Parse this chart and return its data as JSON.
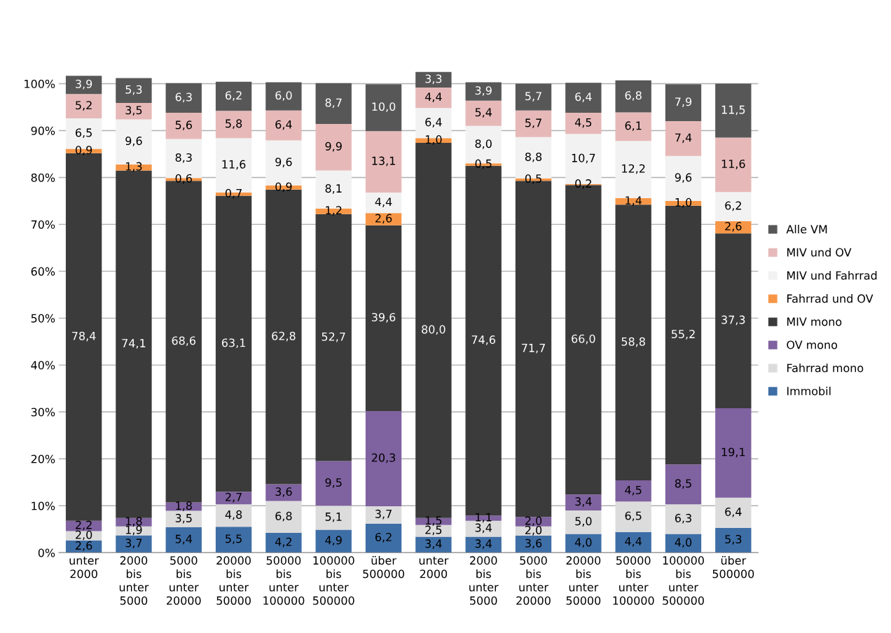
{
  "chart_data": {
    "type": "bar",
    "stacked": true,
    "categories": [
      "unter\n2000",
      "2000\nbis\nunter\n5000",
      "5000\nbis\nunter\n20000",
      "20000\nbis\nunter\n50000",
      "50000\nbis\nunter\n100000",
      "100000\nbis\nunter\n500000",
      "über\n500000",
      "unter\n2000",
      "2000\nbis\nunter\n5000",
      "5000\nbis\nunter\n20000",
      "20000\nbis\nunter\n50000",
      "50000\nbis\nunter\n100000",
      "100000\nbis\nunter\n500000",
      "über\n500000"
    ],
    "ylim": [
      0,
      103
    ],
    "yticks": [
      {
        "value": 0,
        "label": "0%"
      },
      {
        "value": 10,
        "label": "10%"
      },
      {
        "value": 20,
        "label": "20%"
      },
      {
        "value": 30,
        "label": "30%"
      },
      {
        "value": 40,
        "label": "40%"
      },
      {
        "value": 50,
        "label": "50%"
      },
      {
        "value": 60,
        "label": "60%"
      },
      {
        "value": 70,
        "label": "70%"
      },
      {
        "value": 80,
        "label": "80%"
      },
      {
        "value": 90,
        "label": "90%"
      },
      {
        "value": 100,
        "label": "100%"
      }
    ],
    "grid": "y",
    "legend": "right",
    "series": [
      {
        "name": "Immobil",
        "color": "#3e6ea6",
        "values": [
          2.6,
          3.7,
          5.4,
          5.5,
          4.2,
          4.9,
          6.2,
          3.4,
          3.4,
          3.6,
          4.0,
          4.4,
          4.0,
          5.3
        ],
        "value_labels": [
          "2,6",
          "3,7",
          "5,4",
          "5,5",
          "4,2",
          "4,9",
          "6,2",
          "3,4",
          "3,4",
          "3,6",
          "4,0",
          "4,4",
          "4,0",
          "5,3"
        ]
      },
      {
        "name": "Fahrrad mono",
        "color": "#dcdcdc",
        "values": [
          2.0,
          1.9,
          3.5,
          4.8,
          6.8,
          5.1,
          3.7,
          2.5,
          3.4,
          2.0,
          5.0,
          6.5,
          6.3,
          6.4
        ],
        "value_labels": [
          "2,0",
          "1,9",
          "3,5",
          "4,8",
          "6,8",
          "5,1",
          "3,7",
          "2,5",
          "3,4",
          "2,0",
          "5,0",
          "6,5",
          "6,3",
          "6,4"
        ]
      },
      {
        "name": "OV mono",
        "color": "#7f62a0",
        "values": [
          2.2,
          1.8,
          1.8,
          2.7,
          3.6,
          9.5,
          20.3,
          1.5,
          1.1,
          2.0,
          3.4,
          4.5,
          8.5,
          19.1
        ],
        "value_labels": [
          "2,2",
          "1,8",
          "1,8",
          "2,7",
          "3,6",
          "9,5",
          "20,3",
          "1,5",
          "1,1",
          "2,0",
          "3,4",
          "4,5",
          "8,5",
          "19,1"
        ]
      },
      {
        "name": "MIV mono",
        "color": "#3b3b3b",
        "values": [
          78.4,
          74.1,
          68.6,
          63.1,
          62.8,
          52.7,
          39.6,
          80.0,
          74.6,
          71.7,
          66.0,
          58.8,
          55.2,
          37.3
        ],
        "value_labels": [
          "78,4",
          "74,1",
          "68,6",
          "63,1",
          "62,8",
          "52,7",
          "39,6",
          "80,0",
          "74,6",
          "71,7",
          "66,0",
          "58,8",
          "55,2",
          "37,3"
        ]
      },
      {
        "name": "Fahrrad und OV",
        "color": "#f79646",
        "values": [
          0.9,
          1.3,
          0.6,
          0.7,
          0.9,
          1.2,
          2.6,
          1.0,
          0.5,
          0.5,
          0.2,
          1.4,
          1.0,
          2.6
        ],
        "value_labels": [
          "0,9",
          "1,3",
          "0,6",
          "0,7",
          "0,9",
          "1,2",
          "2,6",
          "1,0",
          "0,5",
          "0,5",
          "0,2",
          "1,4",
          "1,0",
          "2,6"
        ]
      },
      {
        "name": "MIV und Fahrrad",
        "color": "#f2f2f2",
        "values": [
          6.5,
          9.6,
          8.3,
          11.6,
          9.6,
          8.1,
          4.4,
          6.4,
          8.0,
          8.8,
          10.7,
          12.2,
          9.6,
          6.2
        ],
        "value_labels": [
          "6,5",
          "9,6",
          "8,3",
          "11,6",
          "9,6",
          "8,1",
          "4,4",
          "6,4",
          "8,0",
          "8,8",
          "10,7",
          "12,2",
          "9,6",
          "6,2"
        ]
      },
      {
        "name": "MIV und OV",
        "color": "#e6b9b8",
        "values": [
          5.2,
          3.5,
          5.6,
          5.8,
          6.4,
          9.9,
          13.1,
          4.4,
          5.4,
          5.7,
          4.5,
          6.1,
          7.4,
          11.6
        ],
        "value_labels": [
          "5,2",
          "3,5",
          "5,6",
          "5,8",
          "6,4",
          "9,9",
          "13,1",
          "4,4",
          "5,4",
          "5,7",
          "4,5",
          "6,1",
          "7,4",
          "11,6"
        ]
      },
      {
        "name": "Alle VM",
        "color": "#575757",
        "values": [
          3.9,
          5.3,
          6.3,
          6.2,
          6.0,
          8.7,
          10.0,
          3.3,
          3.9,
          5.7,
          6.4,
          6.8,
          7.9,
          11.5
        ],
        "value_labels": [
          "3,9",
          "5,3",
          "6,3",
          "6,2",
          "6,0",
          "8,7",
          "10,0",
          "3,3",
          "3,9",
          "5,7",
          "6,4",
          "6,8",
          "7,9",
          "11,5"
        ]
      }
    ]
  }
}
